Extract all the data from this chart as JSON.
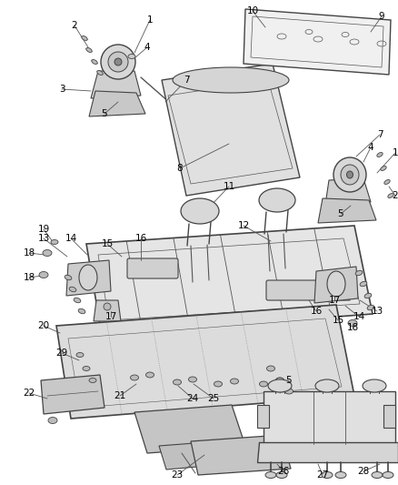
{
  "bg_color": "#ffffff",
  "line_color": "#444444",
  "label_color": "#000000",
  "fig_width": 4.39,
  "fig_height": 5.33,
  "label_fontsize": 7.5
}
